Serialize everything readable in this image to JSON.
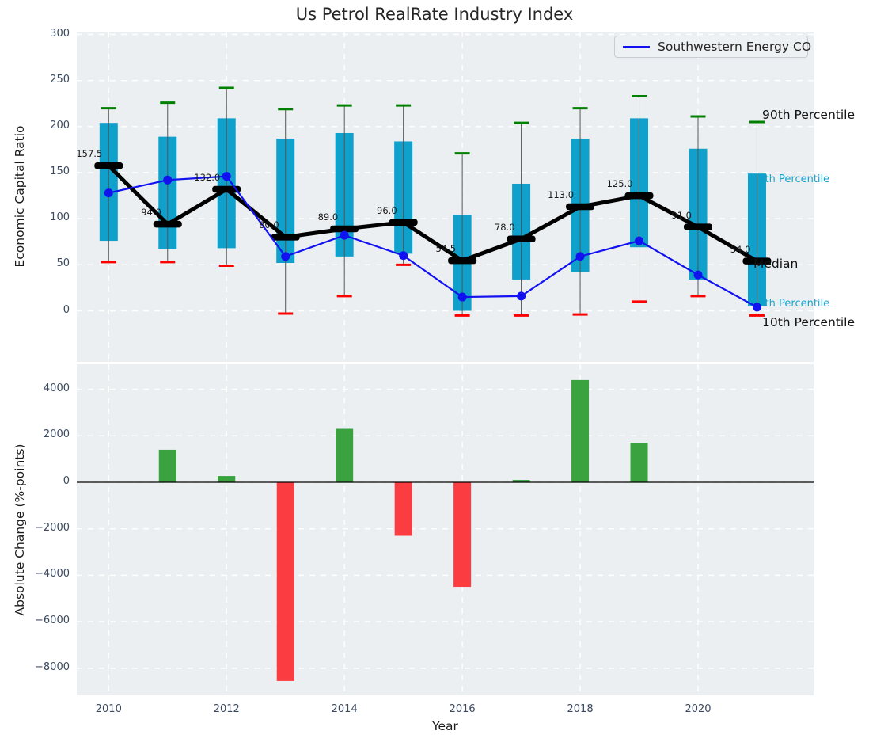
{
  "figure": {
    "title": "Us Petrol RealRate Industry Index"
  },
  "colors": {
    "axes_bg": "#eceff1",
    "grid": "#ffffff",
    "box": "#0fa0cb",
    "whisker_line": "#555555",
    "p90_cap": "#008000",
    "p10_cap": "#ff0000",
    "median": "#000000",
    "company_line": "#1212f0",
    "bar_positive": "#3aa23e",
    "bar_negative": "#fb3c40",
    "tick_text": "#3b4a61",
    "label_text": "#262626",
    "percentile_teal": "#17a5d0"
  },
  "top_chart": {
    "ylabel": "Economic Capital Ratio",
    "yticks": [
      300,
      250,
      200,
      150,
      100,
      50,
      0
    ],
    "legend": {
      "label": "Southwestern Energy CO"
    },
    "right_labels": [
      {
        "text": "90th Percentile"
      },
      {
        "text": "75th Percentile"
      },
      {
        "text": "Median"
      },
      {
        "text": "25th Percentile"
      },
      {
        "text": "10th Percentile"
      }
    ]
  },
  "bottom_chart": {
    "ylabel": "Absolute Change (%-points)",
    "xlabel": "Year",
    "yticks": [
      4000,
      2000,
      0,
      -2000,
      -4000,
      -6000,
      -8000
    ],
    "xticks": [
      2010,
      2012,
      2014,
      2016,
      2018,
      2020
    ]
  },
  "chart_data": [
    {
      "type": "boxplot+line",
      "title": "Us Petrol RealRate Industry Index",
      "xlabel": "Year",
      "ylabel": "Economic Capital Ratio",
      "ylim": [
        -55,
        302
      ],
      "grid": true,
      "legend_position": "upper right",
      "x": [
        2010,
        2011,
        2012,
        2013,
        2014,
        2015,
        2016,
        2017,
        2018,
        2019,
        2020,
        2021
      ],
      "series": [
        {
          "name": "90th Percentile",
          "values": [
            220,
            226,
            242,
            219,
            223,
            223,
            171,
            204,
            220,
            233,
            211,
            205
          ]
        },
        {
          "name": "75th Percentile",
          "values": [
            204,
            189,
            209,
            187,
            193,
            184,
            104,
            138,
            187,
            209,
            176,
            149
          ]
        },
        {
          "name": "Median",
          "values": [
            157.5,
            94,
            132,
            80,
            89,
            96,
            54.5,
            78,
            113,
            125,
            91,
            54
          ]
        },
        {
          "name": "25th Percentile",
          "values": [
            76,
            67,
            68,
            52,
            59,
            62,
            0,
            34,
            42,
            69,
            34,
            5
          ]
        },
        {
          "name": "10th Percentile",
          "values": [
            53,
            53,
            49,
            -3,
            16,
            50,
            -5,
            -5,
            -4,
            10,
            16,
            -5
          ]
        },
        {
          "name": "Southwestern Energy CO",
          "values": [
            128,
            142,
            146,
            59,
            82,
            60,
            15,
            16,
            59,
            76,
            39,
            4
          ]
        }
      ],
      "median_labels": [
        "157.5",
        "94.0",
        "132.0",
        "80.0",
        "89.0",
        "96.0",
        "54.5",
        "78.0",
        "113.0",
        "125.0",
        "91.0",
        "54.0"
      ]
    },
    {
      "type": "bar",
      "x": [
        2010,
        2011,
        2012,
        2013,
        2014,
        2015,
        2016,
        2017,
        2018,
        2019,
        2020,
        2021
      ],
      "values": [
        0,
        1400,
        270,
        -8550,
        2300,
        -2300,
        -4500,
        100,
        4400,
        1700,
        0,
        0
      ],
      "xlabel": "Year",
      "ylabel": "Absolute Change (%-points)",
      "ylim": [
        -9200,
        5100
      ],
      "grid": true
    }
  ]
}
